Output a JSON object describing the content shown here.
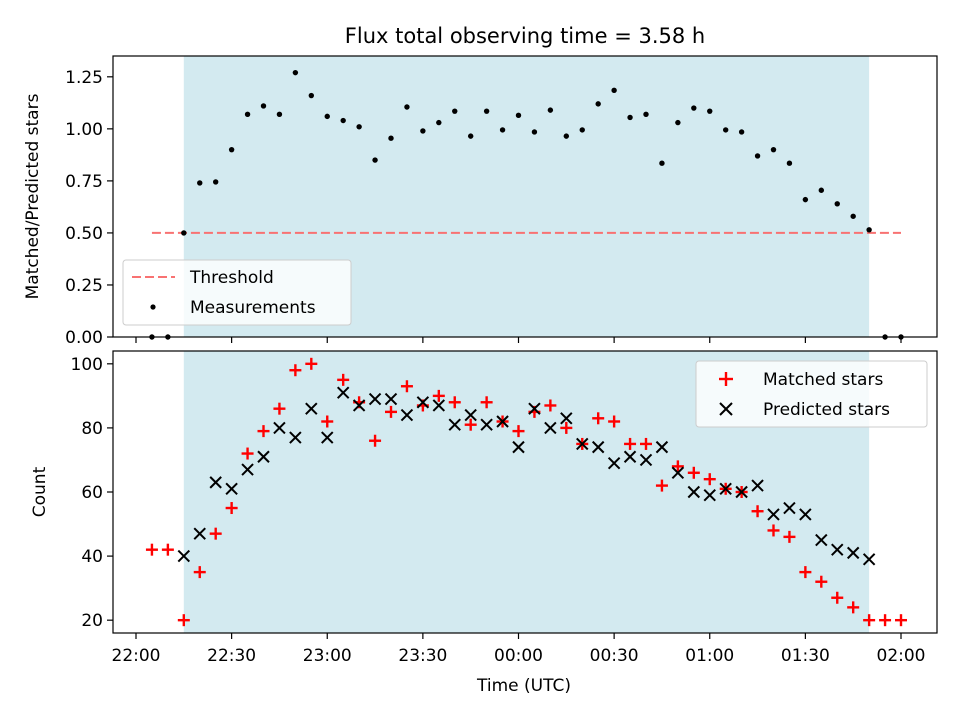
{
  "title": "Flux total observing time = 3.58 h",
  "chart_data": [
    {
      "type": "scatter",
      "panel": "top",
      "ylabel": "Matched/Predicted stars",
      "xlabel": "",
      "ylim": [
        0,
        1.35
      ],
      "yticks": [
        0.0,
        0.25,
        0.5,
        0.75,
        1.0,
        1.25
      ],
      "ytick_labels": [
        "0.00",
        "0.25",
        "0.50",
        "0.75",
        "1.00",
        "1.25"
      ],
      "threshold": {
        "name": "Threshold",
        "value": 0.5,
        "x_range": [
          "22:05",
          "02:00"
        ],
        "color": "#f87272"
      },
      "shaded_region": {
        "x_range": [
          "22:15",
          "01:50"
        ],
        "color": "#d3eaf0"
      },
      "legend": {
        "placement": "lower-left",
        "entries": [
          "Threshold",
          "Measurements"
        ]
      },
      "series": [
        {
          "name": "Measurements",
          "color": "#000000",
          "x": [
            "22:05",
            "22:10",
            "22:15",
            "22:20",
            "22:25",
            "22:30",
            "22:35",
            "22:40",
            "22:45",
            "22:50",
            "22:55",
            "23:00",
            "23:05",
            "23:10",
            "23:15",
            "23:20",
            "23:25",
            "23:30",
            "23:35",
            "23:40",
            "23:45",
            "23:50",
            "23:55",
            "00:00",
            "00:05",
            "00:10",
            "00:15",
            "00:20",
            "00:25",
            "00:30",
            "00:35",
            "00:40",
            "00:45",
            "00:50",
            "00:55",
            "01:00",
            "01:05",
            "01:10",
            "01:15",
            "01:20",
            "01:25",
            "01:30",
            "01:35",
            "01:40",
            "01:45",
            "01:50",
            "01:55",
            "02:00"
          ],
          "values": [
            0.0,
            0.0,
            0.5,
            0.74,
            0.745,
            0.9,
            1.07,
            1.11,
            1.07,
            1.27,
            1.16,
            1.06,
            1.04,
            1.01,
            0.85,
            0.955,
            1.105,
            0.99,
            1.03,
            1.085,
            0.965,
            1.085,
            0.995,
            1.065,
            0.985,
            1.09,
            0.965,
            0.995,
            1.12,
            1.185,
            1.055,
            1.07,
            0.835,
            1.03,
            1.1,
            1.085,
            0.995,
            0.985,
            0.87,
            0.9,
            0.835,
            0.66,
            0.705,
            0.64,
            0.58,
            0.515,
            0.0,
            0.0
          ]
        }
      ]
    },
    {
      "type": "scatter",
      "panel": "bottom",
      "ylabel": "Count",
      "xlabel": "Time (UTC)",
      "ylim": [
        16,
        104
      ],
      "yticks": [
        20,
        40,
        60,
        80,
        100
      ],
      "ytick_labels": [
        "20",
        "40",
        "60",
        "80",
        "100"
      ],
      "xticks": [
        "22:00",
        "22:30",
        "23:00",
        "23:30",
        "00:00",
        "00:30",
        "01:00",
        "01:30",
        "02:00"
      ],
      "shaded_region": {
        "x_range": [
          "22:15",
          "01:50"
        ],
        "color": "#d3eaf0"
      },
      "legend": {
        "placement": "upper-right",
        "entries": [
          "Matched stars",
          "Predicted stars"
        ]
      },
      "series": [
        {
          "name": "Matched stars",
          "marker": "plus",
          "color": "#ff0000",
          "x": [
            "22:05",
            "22:10",
            "22:15",
            "22:20",
            "22:25",
            "22:30",
            "22:35",
            "22:40",
            "22:45",
            "22:50",
            "22:55",
            "23:00",
            "23:05",
            "23:10",
            "23:15",
            "23:20",
            "23:25",
            "23:30",
            "23:35",
            "23:40",
            "23:45",
            "23:50",
            "23:55",
            "00:00",
            "00:05",
            "00:10",
            "00:15",
            "00:20",
            "00:25",
            "00:30",
            "00:35",
            "00:40",
            "00:45",
            "00:50",
            "00:55",
            "01:00",
            "01:05",
            "01:10",
            "01:15",
            "01:20",
            "01:25",
            "01:30",
            "01:35",
            "01:40",
            "01:45",
            "01:50",
            "01:55",
            "02:00"
          ],
          "values": [
            42,
            42,
            20,
            35,
            47,
            55,
            72,
            79,
            86,
            98,
            100,
            82,
            95,
            88,
            76,
            85,
            93,
            87,
            90,
            88,
            81,
            88,
            82,
            79,
            85,
            87,
            80,
            75,
            83,
            82,
            75,
            75,
            62,
            68,
            66,
            64,
            61,
            60,
            54,
            48,
            46,
            35,
            32,
            27,
            24,
            20,
            20,
            20
          ]
        },
        {
          "name": "Predicted stars",
          "marker": "x",
          "color": "#000000",
          "x": [
            "22:15",
            "22:20",
            "22:25",
            "22:30",
            "22:35",
            "22:40",
            "22:45",
            "22:50",
            "22:55",
            "23:00",
            "23:05",
            "23:10",
            "23:15",
            "23:20",
            "23:25",
            "23:30",
            "23:35",
            "23:40",
            "23:45",
            "23:50",
            "23:55",
            "00:00",
            "00:05",
            "00:10",
            "00:15",
            "00:20",
            "00:25",
            "00:30",
            "00:35",
            "00:40",
            "00:45",
            "00:50",
            "00:55",
            "01:00",
            "01:05",
            "01:10",
            "01:15",
            "01:20",
            "01:25",
            "01:30",
            "01:35",
            "01:40",
            "01:45",
            "01:50"
          ],
          "values": [
            40,
            47,
            63,
            61,
            67,
            71,
            80,
            77,
            86,
            77,
            91,
            87,
            89,
            89,
            84,
            88,
            87,
            81,
            84,
            81,
            82,
            74,
            86,
            80,
            83,
            75,
            74,
            69,
            71,
            70,
            74,
            66,
            60,
            59,
            61,
            60,
            62,
            53,
            55,
            53,
            45,
            42,
            41,
            39
          ]
        }
      ]
    }
  ]
}
